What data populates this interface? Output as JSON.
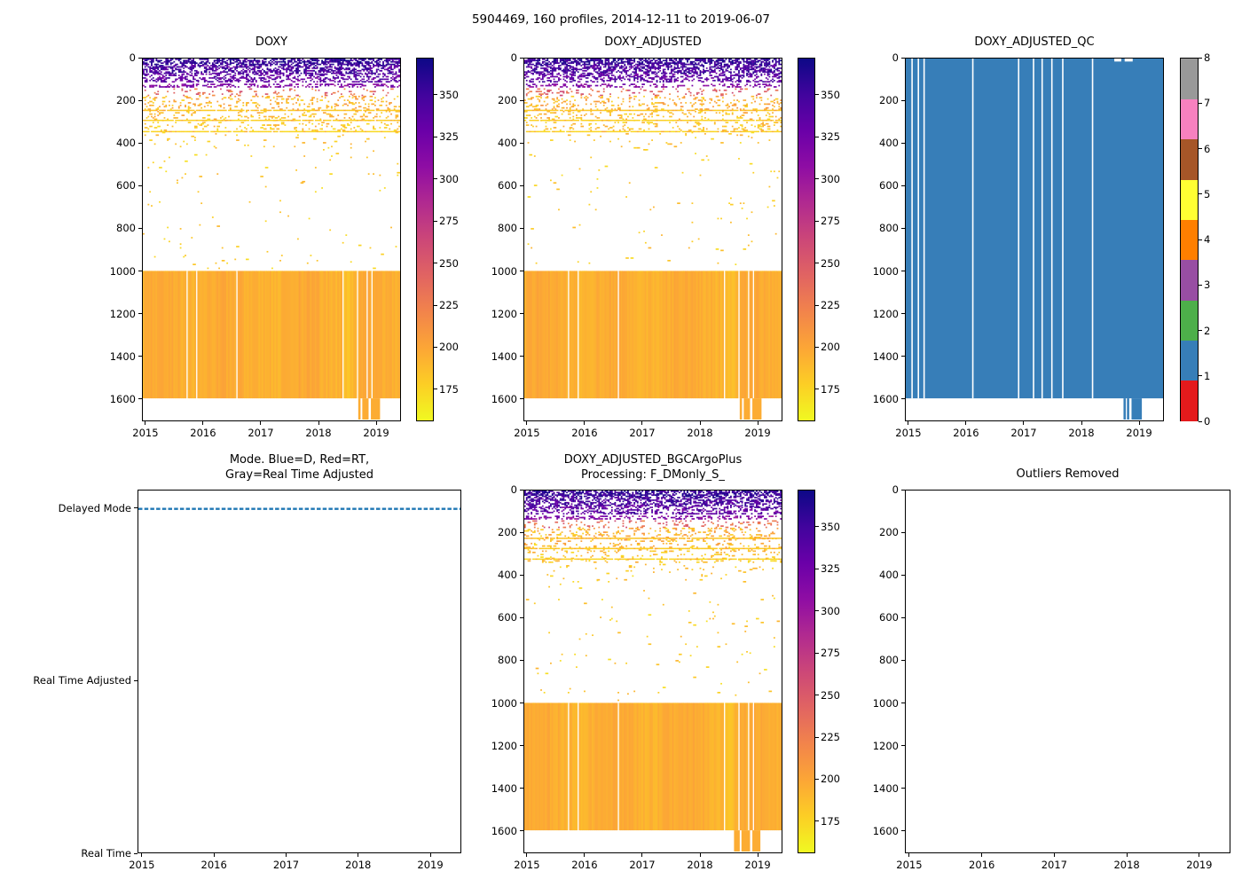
{
  "figure": {
    "title": "5904469, 160 profiles, 2014-12-11 to 2019-06-07",
    "background": "#ffffff",
    "axis_color": "#000000"
  },
  "palette": {
    "plasma_r_stops": [
      "#0d0887",
      "#41049d",
      "#6a00a8",
      "#8f0da4",
      "#b12a90",
      "#cc4778",
      "#e16462",
      "#f2844b",
      "#fca636",
      "#fcce25",
      "#f0f921"
    ],
    "set1_qc_colors": [
      "#e41a1c",
      "#377eb8",
      "#4daf4a",
      "#984ea3",
      "#ff7f00",
      "#ffff33",
      "#a65628",
      "#f781bf",
      "#999999"
    ],
    "qc_fill": "#377eb8",
    "mode_line": "#1f77b4",
    "gap_color": "#ffffff"
  },
  "chart_data": [
    {
      "id": "doxy",
      "type": "heatmap",
      "title": "DOXY",
      "seed": 7,
      "x_range": [
        2014.94,
        2019.43
      ],
      "x_tick_values": [
        2015,
        2016,
        2017,
        2018,
        2019
      ],
      "x_tick_labels": [
        "2015",
        "2016",
        "2017",
        "2018",
        "2019"
      ],
      "y_range": [
        0,
        1704
      ],
      "y_tick_values": [
        0,
        200,
        400,
        600,
        800,
        1000,
        1200,
        1400,
        1600
      ],
      "y_tick_labels": [
        "0",
        "200",
        "400",
        "600",
        "800",
        "1000",
        "1200",
        "1400",
        "1600"
      ],
      "n_profiles": 160,
      "colorbar": {
        "min": 156,
        "max": 372,
        "ticks": [
          175,
          200,
          225,
          250,
          275,
          300,
          325,
          350
        ],
        "colormap": "plasma_r"
      },
      "bands": [
        {
          "depth": [
            0,
            30
          ],
          "value": [
            340,
            372
          ],
          "density": 0.55
        },
        {
          "depth": [
            30,
            70
          ],
          "value": [
            325,
            365
          ],
          "density": 0.45
        },
        {
          "depth": [
            70,
            112
          ],
          "value": [
            315,
            355
          ],
          "density": 0.35
        },
        {
          "depth": [
            118,
            135
          ],
          "value": [
            295,
            335
          ],
          "density": 0.3
        },
        {
          "depth": [
            140,
            172
          ],
          "value": [
            215,
            265
          ],
          "density": 0.1
        },
        {
          "depth": [
            175,
            238
          ],
          "value": [
            172,
            212
          ],
          "density": 0.14
        },
        {
          "depth": [
            246,
            292
          ],
          "value": [
            170,
            205
          ],
          "density": 0.12
        },
        {
          "depth": [
            298,
            338
          ],
          "value": [
            168,
            198
          ],
          "density": 0.1
        },
        {
          "depth": [
            345,
            420
          ],
          "value": [
            168,
            195
          ],
          "density": 0.02
        },
        {
          "depth": [
            420,
            990
          ],
          "value": [
            168,
            192
          ],
          "density": 0.006
        }
      ],
      "lines": [
        {
          "depth": 241,
          "value": 176
        },
        {
          "depth": 288,
          "value": 172
        },
        {
          "depth": 341,
          "value": 170
        }
      ],
      "block": {
        "depth": [
          1000,
          1600
        ],
        "value": [
          190,
          206
        ],
        "dark_span": [
          2018.42,
          2018.62
        ]
      },
      "gaps": [
        2015.72,
        2015.88,
        2016.58,
        2018.42,
        2018.69,
        2018.85,
        2018.95
      ],
      "tail": [
        [
          2018.7,
          2018.74
        ],
        [
          2018.77,
          2018.88
        ],
        [
          2018.92,
          2019.08
        ]
      ],
      "tail_value": 196
    },
    {
      "id": "doxy_adjusted",
      "type": "heatmap",
      "title": "DOXY_ADJUSTED",
      "seed": 13,
      "x_range": [
        2014.94,
        2019.43
      ],
      "x_tick_values": [
        2015,
        2016,
        2017,
        2018,
        2019
      ],
      "x_tick_labels": [
        "2015",
        "2016",
        "2017",
        "2018",
        "2019"
      ],
      "y_range": [
        0,
        1704
      ],
      "y_tick_values": [
        0,
        200,
        400,
        600,
        800,
        1000,
        1200,
        1400,
        1600
      ],
      "y_tick_labels": [
        "0",
        "200",
        "400",
        "600",
        "800",
        "1000",
        "1200",
        "1400",
        "1600"
      ],
      "n_profiles": 160,
      "colorbar": {
        "min": 156,
        "max": 372,
        "ticks": [
          175,
          200,
          225,
          250,
          275,
          300,
          325,
          350
        ],
        "colormap": "plasma_r"
      },
      "bands": [
        {
          "depth": [
            0,
            30
          ],
          "value": [
            340,
            372
          ],
          "density": 0.55
        },
        {
          "depth": [
            30,
            70
          ],
          "value": [
            325,
            365
          ],
          "density": 0.45
        },
        {
          "depth": [
            70,
            112
          ],
          "value": [
            315,
            355
          ],
          "density": 0.35
        },
        {
          "depth": [
            118,
            135
          ],
          "value": [
            295,
            335
          ],
          "density": 0.3
        },
        {
          "depth": [
            140,
            172
          ],
          "value": [
            215,
            265
          ],
          "density": 0.1
        },
        {
          "depth": [
            175,
            238
          ],
          "value": [
            172,
            212
          ],
          "density": 0.14
        },
        {
          "depth": [
            246,
            292
          ],
          "value": [
            170,
            205
          ],
          "density": 0.12
        },
        {
          "depth": [
            298,
            338
          ],
          "value": [
            168,
            198
          ],
          "density": 0.1
        },
        {
          "depth": [
            345,
            420
          ],
          "value": [
            168,
            195
          ],
          "density": 0.02
        },
        {
          "depth": [
            420,
            990
          ],
          "value": [
            168,
            192
          ],
          "density": 0.006
        }
      ],
      "lines": [
        {
          "depth": 241,
          "value": 176
        },
        {
          "depth": 288,
          "value": 172
        },
        {
          "depth": 341,
          "value": 170
        }
      ],
      "block": {
        "depth": [
          1000,
          1600
        ],
        "value": [
          190,
          206
        ],
        "dark_span": [
          2018.42,
          2018.62
        ]
      },
      "gaps": [
        2015.72,
        2015.88,
        2016.58,
        2018.42,
        2018.69,
        2018.85,
        2018.95
      ],
      "tail": [
        [
          2018.7,
          2018.74
        ],
        [
          2018.77,
          2018.88
        ],
        [
          2018.92,
          2019.08
        ]
      ],
      "tail_value": 196
    },
    {
      "id": "doxy_adjusted_qc",
      "type": "qc",
      "title": "DOXY_ADJUSTED_QC",
      "x_range": [
        2014.94,
        2019.43
      ],
      "x_tick_values": [
        2015,
        2016,
        2017,
        2018,
        2019
      ],
      "x_tick_labels": [
        "2015",
        "2016",
        "2017",
        "2018",
        "2019"
      ],
      "y_range": [
        0,
        1704
      ],
      "y_tick_values": [
        0,
        200,
        400,
        600,
        800,
        1000,
        1200,
        1400,
        1600
      ],
      "y_tick_labels": [
        "0",
        "200",
        "400",
        "600",
        "800",
        "1000",
        "1200",
        "1400",
        "1600"
      ],
      "fill_qc_value": 1,
      "block_depth": [
        0,
        1600
      ],
      "gaps": [
        2015.05,
        2015.16,
        2015.26,
        2016.11,
        2016.91,
        2017.17,
        2017.32,
        2017.49,
        2017.68,
        2018.2
      ],
      "tail": [
        [
          2018.74,
          2018.78
        ],
        [
          2018.8,
          2018.84
        ],
        [
          2018.88,
          2019.06
        ]
      ],
      "top_notches": [
        [
          2018.58,
          2018.7
        ],
        [
          2018.76,
          2018.9
        ]
      ],
      "notch_depth": 14,
      "colorbar": {
        "type": "discrete",
        "tick_labels": [
          "0",
          "1",
          "2",
          "3",
          "4",
          "5",
          "6",
          "7",
          "8"
        ],
        "n_segments": 9
      }
    },
    {
      "id": "mode",
      "type": "mode",
      "title_lines": [
        "Mode. Blue=D, Red=RT,",
        "Gray=Real Time Adjusted"
      ],
      "x_range": [
        2014.94,
        2019.43
      ],
      "x_tick_values": [
        2015,
        2016,
        2017,
        2018,
        2019
      ],
      "x_tick_labels": [
        "2015",
        "2016",
        "2017",
        "2018",
        "2019"
      ],
      "y_range": [
        0,
        2.107
      ],
      "y_categories": [
        {
          "label": "Delayed Mode",
          "value": 2
        },
        {
          "label": "Real Time Adjusted",
          "value": 1
        },
        {
          "label": "Real Time",
          "value": 0
        }
      ],
      "series": {
        "category": "Delayed Mode",
        "value": 2,
        "x_span": [
          2014.94,
          2019.43
        ],
        "style": "dashed"
      }
    },
    {
      "id": "doxy_adjusted_bgc",
      "type": "heatmap",
      "seed": 29,
      "title_lines": [
        "DOXY_ADJUSTED_BGCArgoPlus",
        "Processing: F_DMonly_S_"
      ],
      "x_range": [
        2014.94,
        2019.43
      ],
      "x_tick_values": [
        2015,
        2016,
        2017,
        2018,
        2019
      ],
      "x_tick_labels": [
        "2015",
        "2016",
        "2017",
        "2018",
        "2019"
      ],
      "y_range": [
        0,
        1704
      ],
      "y_tick_values": [
        0,
        200,
        400,
        600,
        800,
        1000,
        1200,
        1400,
        1600
      ],
      "y_tick_labels": [
        "0",
        "200",
        "400",
        "600",
        "800",
        "1000",
        "1200",
        "1400",
        "1600"
      ],
      "n_profiles": 160,
      "colorbar": {
        "min": 156,
        "max": 372,
        "ticks": [
          175,
          200,
          225,
          250,
          275,
          300,
          325,
          350
        ],
        "colormap": "plasma_r"
      },
      "bands": [
        {
          "depth": [
            0,
            30
          ],
          "value": [
            340,
            372
          ],
          "density": 0.55
        },
        {
          "depth": [
            30,
            70
          ],
          "value": [
            325,
            365
          ],
          "density": 0.45
        },
        {
          "depth": [
            70,
            112
          ],
          "value": [
            315,
            355
          ],
          "density": 0.35
        },
        {
          "depth": [
            118,
            135
          ],
          "value": [
            295,
            335
          ],
          "density": 0.3
        },
        {
          "depth": [
            140,
            172
          ],
          "value": [
            215,
            265
          ],
          "density": 0.1
        },
        {
          "depth": [
            175,
            238
          ],
          "value": [
            172,
            212
          ],
          "density": 0.14
        },
        {
          "depth": [
            246,
            292
          ],
          "value": [
            170,
            205
          ],
          "density": 0.12
        },
        {
          "depth": [
            298,
            338
          ],
          "value": [
            168,
            198
          ],
          "density": 0.1
        },
        {
          "depth": [
            345,
            420
          ],
          "value": [
            168,
            195
          ],
          "density": 0.02
        },
        {
          "depth": [
            420,
            990
          ],
          "value": [
            168,
            192
          ],
          "density": 0.006
        }
      ],
      "lines": [
        {
          "depth": 222,
          "value": 178
        },
        {
          "depth": 270,
          "value": 174
        },
        {
          "depth": 320,
          "value": 170
        }
      ],
      "block": {
        "depth": [
          1000,
          1600
        ],
        "value": [
          190,
          206
        ],
        "dark_span": [
          2018.42,
          2018.62
        ]
      },
      "gaps": [
        2015.72,
        2015.88,
        2016.58,
        2018.42,
        2018.69,
        2018.85,
        2018.95
      ],
      "tail": [
        [
          2018.6,
          2018.7
        ],
        [
          2018.73,
          2018.88
        ],
        [
          2018.92,
          2019.06
        ]
      ],
      "tail_value": 196
    },
    {
      "id": "outliers",
      "type": "empty",
      "title": "Outliers Removed",
      "x_range": [
        2014.94,
        2019.43
      ],
      "x_tick_values": [
        2015,
        2016,
        2017,
        2018,
        2019
      ],
      "x_tick_labels": [
        "2015",
        "2016",
        "2017",
        "2018",
        "2019"
      ],
      "y_range": [
        0,
        1704
      ],
      "y_tick_values": [
        0,
        200,
        400,
        600,
        800,
        1000,
        1200,
        1400,
        1600
      ],
      "y_tick_labels": [
        "0",
        "200",
        "400",
        "600",
        "800",
        "1000",
        "1200",
        "1400",
        "1600"
      ]
    }
  ]
}
